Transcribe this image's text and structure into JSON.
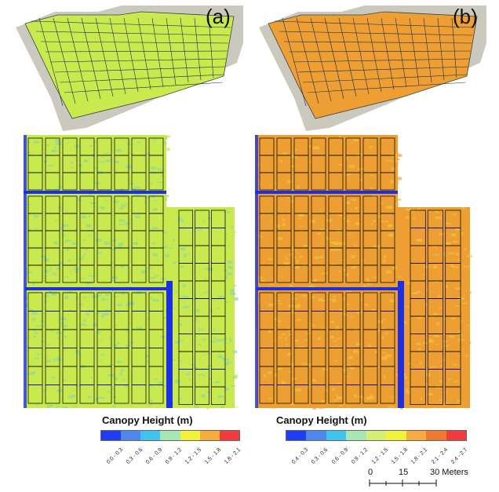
{
  "panels": [
    {
      "label": "(a)",
      "legend": {
        "title": "Canopy Height (m)",
        "classes": [
          "0.0 - 0.3",
          "0.3 - 0.6",
          "0.6 - 0.9",
          "0.9 - 1.2",
          "1.2 - 1.5",
          "1.5 - 1.8",
          "1.8 - 2.1"
        ],
        "colors": [
          "#1f3df5",
          "#4f86ee",
          "#3fc3ef",
          "#a6e7b5",
          "#f2f23a",
          "#f5ac3c",
          "#f23b3b"
        ]
      }
    },
    {
      "label": "(b)",
      "legend": {
        "title": "Canopy Height (m)",
        "classes": [
          "0.4 - 0.3",
          "0.3 - 0.6",
          "0.6 - 0.9",
          "0.9 - 1.2",
          "1.2 - 1.5",
          "1.5 - 1.8",
          "1.8 - 2.1",
          "2.1 - 2.4",
          "2.4 - 2.7"
        ],
        "colors": [
          "#1f3df5",
          "#4f86ee",
          "#3fc3ef",
          "#a6e7b5",
          "#d4ef74",
          "#f2f23a",
          "#f5ac3c",
          "#f3782f",
          "#f23b3b"
        ]
      }
    }
  ],
  "scalebar": {
    "ticks": [
      "0",
      "15",
      "30 Meters"
    ]
  },
  "map_colors": {
    "a": {
      "field": "#c9ea4e",
      "accent": "#8fd6a3",
      "gap": "#1c2fe6"
    },
    "b": {
      "field": "#ee9f33",
      "accent": "#f2c23a",
      "gap": "#1c2fe6"
    },
    "persp_ground": "#c9c5b8"
  }
}
